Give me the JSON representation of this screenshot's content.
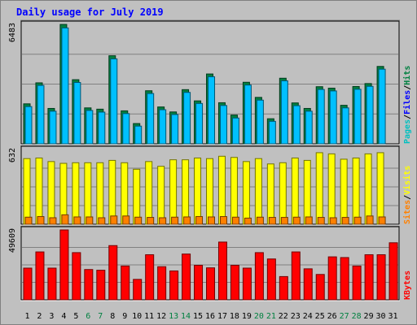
{
  "chart_data": {
    "type": "bar",
    "title": "Daily usage for July 2019",
    "categories": [
      "1",
      "2",
      "3",
      "4",
      "5",
      "6",
      "7",
      "8",
      "9",
      "10",
      "11",
      "12",
      "13",
      "14",
      "15",
      "16",
      "17",
      "18",
      "19",
      "20",
      "21",
      "22",
      "23",
      "24",
      "25",
      "26",
      "27",
      "28",
      "29",
      "30",
      "31"
    ],
    "weekend_days": [
      "6",
      "7",
      "13",
      "14",
      "20",
      "21",
      "27",
      "28"
    ],
    "panels": [
      {
        "id": "hits-files-pages",
        "ymax_label": "6483",
        "ymax": 6483,
        "side_labels": [
          {
            "text": "Pages",
            "color": "#00c0c0"
          },
          {
            "text": "/",
            "color": "#000000"
          },
          {
            "text": "Files",
            "color": "#0000ff"
          },
          {
            "text": "/",
            "color": "#000000"
          },
          {
            "text": "Hits",
            "color": "#008040"
          }
        ],
        "series": [
          {
            "name": "Hits",
            "color": "#008040",
            "values": [
              2170,
              3310,
              1920,
              6480,
              3480,
              1950,
              1880,
              4780,
              1790,
              1100,
              2880,
              2000,
              1730,
              2940,
              2330,
              3790,
              2230,
              1560,
              3340,
              2520,
              1360,
              3560,
              2220,
              1920,
              3100,
              3020,
              2090,
              3110,
              3270,
              4200,
              0
            ]
          },
          {
            "name": "Files",
            "color": "#00c0ff",
            "values": [
              2020,
              3170,
              1770,
              6290,
              3330,
              1810,
              1720,
              4610,
              1640,
              960,
              2730,
              1850,
              1590,
              2790,
              2190,
              3640,
              2080,
              1400,
              3190,
              2370,
              1220,
              3420,
              2070,
              1770,
              2950,
              2870,
              1950,
              2960,
              3120,
              4050,
              0
            ]
          }
        ]
      },
      {
        "id": "visits-sites",
        "ymax_label": "632",
        "ymax": 632,
        "side_labels": [
          {
            "text": "Sites",
            "color": "#ff8000"
          },
          {
            "text": "/",
            "color": "#000000"
          },
          {
            "text": "Visits",
            "color": "#ffff00"
          }
        ],
        "series": [
          {
            "name": "Visits",
            "color": "#ffff00",
            "values": [
              555,
              560,
              530,
              515,
              520,
              520,
              520,
              540,
              520,
              465,
              530,
              490,
              545,
              545,
              560,
              555,
              575,
              565,
              530,
              555,
              510,
              520,
              560,
              540,
              605,
              595,
              550,
              560,
              595,
              605,
              0
            ]
          },
          {
            "name": "Sites",
            "color": "#ff8000",
            "values": [
              60,
              65,
              55,
              80,
              62,
              62,
              55,
              70,
              70,
              60,
              58,
              55,
              60,
              62,
              65,
              62,
              65,
              60,
              52,
              60,
              58,
              58,
              60,
              62,
              58,
              55,
              58,
              60,
              70,
              62,
              0
            ]
          }
        ]
      },
      {
        "id": "kbytes",
        "ymax_label": "49609",
        "ymax": 49609,
        "side_labels": [
          {
            "text": "KBytes",
            "color": "#ff0000"
          }
        ],
        "series": [
          {
            "name": "KBytes",
            "color": "#ff0000",
            "values": [
              22500,
              34000,
              22500,
              49600,
              33500,
              21500,
              21000,
              38500,
              24000,
              14500,
              32000,
              23500,
              20500,
              32500,
              24500,
              22700,
              41000,
              24500,
              22500,
              33500,
              29000,
              16500,
              34000,
              22000,
              18000,
              30500,
              30000,
              24000,
              32000,
              32000,
              40500
            ]
          }
        ]
      }
    ]
  }
}
